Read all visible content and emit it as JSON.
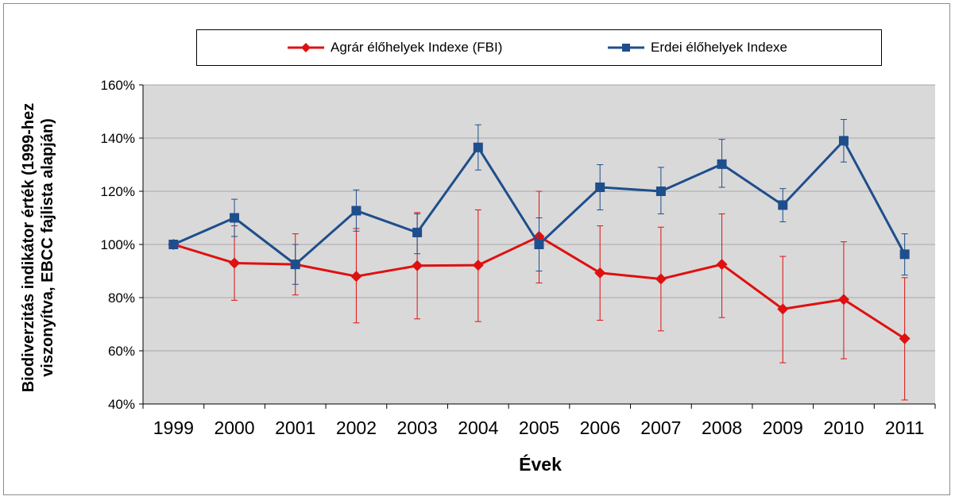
{
  "chart_data": {
    "type": "line",
    "title": "",
    "xlabel": "Évek",
    "ylabel": "Biodiverzitás indikátor érték (1999-hez viszonyítva, EBCC fajlista alapján)",
    "categories": [
      "1999",
      "2000",
      "2001",
      "2002",
      "2003",
      "2004",
      "2005",
      "2006",
      "2007",
      "2008",
      "2009",
      "2010",
      "2011"
    ],
    "ylim": [
      0.4,
      1.6
    ],
    "yticks": [
      0.4,
      0.6,
      0.8,
      1.0,
      1.2,
      1.4,
      1.6
    ],
    "ytick_labels": [
      "40%",
      "60%",
      "80%",
      "100%",
      "120%",
      "140%",
      "160%"
    ],
    "grid": true,
    "legend_position": "top",
    "series": [
      {
        "name": "Agrár élőhelyek Indexe (FBI)",
        "color": "#e01010",
        "marker": "diamond",
        "values": [
          1.0,
          0.93,
          0.925,
          0.88,
          0.92,
          0.922,
          1.03,
          0.893,
          0.87,
          0.925,
          0.757,
          0.793,
          0.646
        ],
        "err_upper": [
          1.01,
          1.07,
          1.04,
          1.06,
          1.12,
          1.13,
          1.2,
          1.07,
          1.065,
          1.115,
          0.955,
          1.01,
          0.875
        ],
        "err_lower": [
          0.99,
          0.79,
          0.81,
          0.705,
          0.72,
          0.71,
          0.855,
          0.715,
          0.675,
          0.725,
          0.555,
          0.57,
          0.415
        ]
      },
      {
        "name": "Erdei élőhelyek Indexe",
        "color": "#1f4e8c",
        "marker": "square",
        "values": [
          1.0,
          1.1,
          0.925,
          1.127,
          1.045,
          1.365,
          1.0,
          1.215,
          1.2,
          1.302,
          1.148,
          1.39,
          0.963
        ],
        "err_upper": [
          1.01,
          1.17,
          1.0,
          1.205,
          1.115,
          1.45,
          1.1,
          1.3,
          1.29,
          1.395,
          1.21,
          1.47,
          1.04
        ],
        "err_lower": [
          0.99,
          1.03,
          0.85,
          1.05,
          0.965,
          1.28,
          0.9,
          1.13,
          1.115,
          1.215,
          1.085,
          1.31,
          0.885
        ]
      }
    ]
  }
}
